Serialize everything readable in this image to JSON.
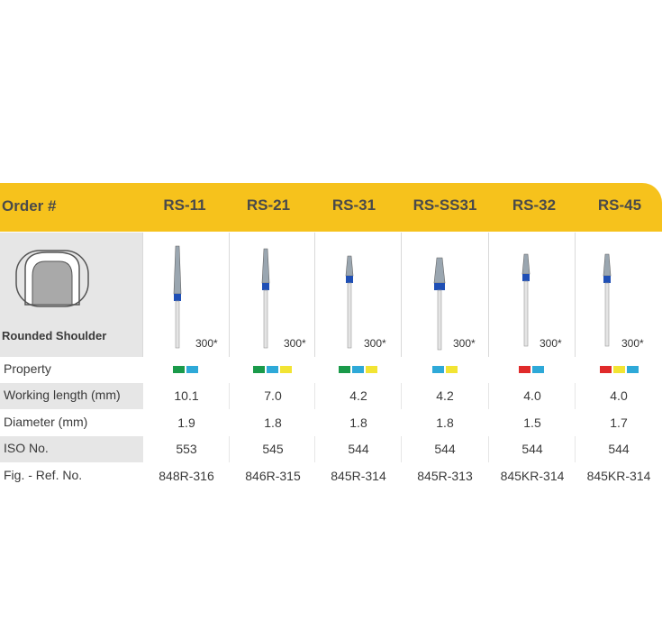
{
  "header": {
    "order_label": "Order #",
    "columns": [
      "RS-11",
      "RS-21",
      "RS-31",
      "RS-SS31",
      "RS-32",
      "RS-45"
    ]
  },
  "shape": {
    "label": "Rounded Shoulder"
  },
  "rpm": [
    "300*",
    "300*",
    "300*",
    "300*",
    "300*",
    "300*"
  ],
  "rows": {
    "property": {
      "label": "Property",
      "colors": [
        [
          "#1a9a4a",
          "#2ea9d8"
        ],
        [
          "#1a9a4a",
          "#2ea9d8",
          "#f2e433"
        ],
        [
          "#1a9a4a",
          "#2ea9d8",
          "#f2e433"
        ],
        [
          "#2ea9d8",
          "#f2e433"
        ],
        [
          "#e02a2a",
          "#2ea9d8"
        ],
        [
          "#e02a2a",
          "#f2e433",
          "#2ea9d8"
        ]
      ]
    },
    "working_length": {
      "label": "Working length (mm)",
      "values": [
        "10.1",
        "7.0",
        "4.2",
        "4.2",
        "4.0",
        "4.0"
      ]
    },
    "diameter": {
      "label": "Diameter (mm)",
      "values": [
        "1.9",
        "1.8",
        "1.8",
        "1.8",
        "1.5",
        "1.7"
      ]
    },
    "iso": {
      "label": "ISO No.",
      "values": [
        "553",
        "545",
        "544",
        "544",
        "544",
        "544"
      ]
    },
    "ref": {
      "label": "Fig. - Ref. No.",
      "values": [
        "848R-316",
        "846R-315",
        "845R-314",
        "845R-313",
        "845KR-314",
        "845KR-314"
      ]
    }
  },
  "colors": {
    "header_bg": "#f6c21c",
    "band_blue": "#1f4fb5",
    "grid_gray": "#d9d9d9"
  }
}
